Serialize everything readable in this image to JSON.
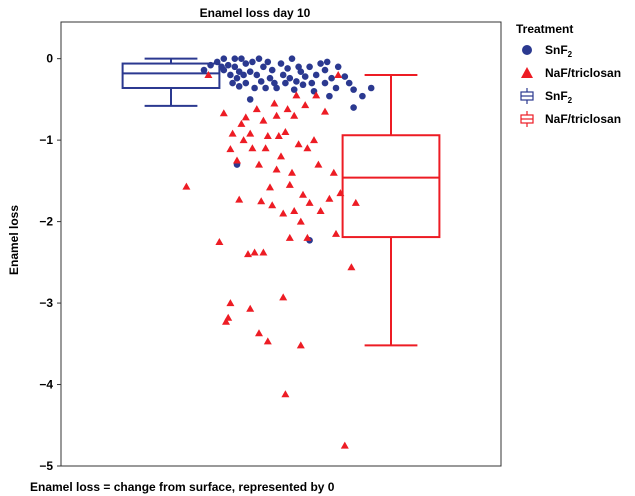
{
  "chart_data": {
    "type": "box+scatter",
    "title": "Enamel loss day 10",
    "ylabel": "Enamel loss",
    "xlabel": "",
    "caption": "Enamel loss = change from surface, represented by 0",
    "ylim": [
      -5,
      0.45
    ],
    "yticks": [
      0,
      -1,
      -2,
      -3,
      -4,
      -5
    ],
    "ytick_labels": [
      "0",
      "−1",
      "−2",
      "−3",
      "−4",
      "−5"
    ],
    "grid": false,
    "legend_position": "right",
    "legend": {
      "title": "Treatment",
      "entries": [
        {
          "label_main": "SnF",
          "label_sub": "2",
          "symbol": "circle",
          "color": "#2b3990"
        },
        {
          "label_main": "NaF/triclosan",
          "label_sub": "",
          "symbol": "triangle",
          "color": "#ed1c24"
        },
        {
          "label_main": "SnF",
          "label_sub": "2",
          "symbol": "box",
          "color": "#2b3990"
        },
        {
          "label_main": "NaF/triclosan",
          "label_sub": "",
          "symbol": "box",
          "color": "#ed1c24"
        }
      ]
    },
    "boxes": [
      {
        "name": "SnF2",
        "color": "#2b3990",
        "group_x": 0.25,
        "min": -0.58,
        "q1": -0.36,
        "median": -0.18,
        "q3": -0.06,
        "max": 0.0
      },
      {
        "name": "NaF/triclosan",
        "color": "#ed1c24",
        "group_x": 0.75,
        "min": -3.52,
        "q1": -2.19,
        "median": -1.46,
        "q3": -0.94,
        "max": -0.2
      }
    ],
    "series": [
      {
        "name": "SnF2",
        "marker": "circle",
        "color": "#2b3990",
        "points": [
          {
            "x": 0.325,
            "y": -0.14
          },
          {
            "x": 0.34,
            "y": -0.08
          },
          {
            "x": 0.355,
            "y": -0.04
          },
          {
            "x": 0.365,
            "y": -0.1
          },
          {
            "x": 0.37,
            "y": 0.0
          },
          {
            "x": 0.37,
            "y": -0.14
          },
          {
            "x": 0.38,
            "y": -0.08
          },
          {
            "x": 0.385,
            "y": -0.2
          },
          {
            "x": 0.39,
            "y": -0.3
          },
          {
            "x": 0.395,
            "y": 0.0
          },
          {
            "x": 0.395,
            "y": -0.1
          },
          {
            "x": 0.4,
            "y": -0.24
          },
          {
            "x": 0.405,
            "y": -0.16
          },
          {
            "x": 0.405,
            "y": -0.34
          },
          {
            "x": 0.41,
            "y": 0.0
          },
          {
            "x": 0.415,
            "y": -0.2
          },
          {
            "x": 0.42,
            "y": -0.3
          },
          {
            "x": 0.42,
            "y": -0.06
          },
          {
            "x": 0.43,
            "y": -0.16
          },
          {
            "x": 0.43,
            "y": -0.5
          },
          {
            "x": 0.435,
            "y": -0.04
          },
          {
            "x": 0.44,
            "y": -0.36
          },
          {
            "x": 0.445,
            "y": -0.2
          },
          {
            "x": 0.45,
            "y": 0.0
          },
          {
            "x": 0.455,
            "y": -0.28
          },
          {
            "x": 0.46,
            "y": -0.1
          },
          {
            "x": 0.465,
            "y": -0.36
          },
          {
            "x": 0.47,
            "y": -0.04
          },
          {
            "x": 0.475,
            "y": -0.24
          },
          {
            "x": 0.48,
            "y": -0.14
          },
          {
            "x": 0.485,
            "y": -0.3
          },
          {
            "x": 0.49,
            "y": -0.36
          },
          {
            "x": 0.5,
            "y": -0.06
          },
          {
            "x": 0.505,
            "y": -0.2
          },
          {
            "x": 0.51,
            "y": -0.3
          },
          {
            "x": 0.515,
            "y": -0.12
          },
          {
            "x": 0.52,
            "y": -0.24
          },
          {
            "x": 0.525,
            "y": 0.0
          },
          {
            "x": 0.53,
            "y": -0.38
          },
          {
            "x": 0.535,
            "y": -0.28
          },
          {
            "x": 0.54,
            "y": -0.1
          },
          {
            "x": 0.545,
            "y": -0.16
          },
          {
            "x": 0.55,
            "y": -0.32
          },
          {
            "x": 0.555,
            "y": -0.22
          },
          {
            "x": 0.565,
            "y": -0.1
          },
          {
            "x": 0.57,
            "y": -0.3
          },
          {
            "x": 0.575,
            "y": -0.4
          },
          {
            "x": 0.58,
            "y": -0.2
          },
          {
            "x": 0.59,
            "y": -0.06
          },
          {
            "x": 0.6,
            "y": -0.14
          },
          {
            "x": 0.6,
            "y": -0.3
          },
          {
            "x": 0.605,
            "y": -0.04
          },
          {
            "x": 0.61,
            "y": -0.46
          },
          {
            "x": 0.615,
            "y": -0.24
          },
          {
            "x": 0.625,
            "y": -0.36
          },
          {
            "x": 0.63,
            "y": -0.1
          },
          {
            "x": 0.645,
            "y": -0.22
          },
          {
            "x": 0.655,
            "y": -0.3
          },
          {
            "x": 0.665,
            "y": -0.38
          },
          {
            "x": 0.665,
            "y": -0.6
          },
          {
            "x": 0.685,
            "y": -0.46
          },
          {
            "x": 0.705,
            "y": -0.36
          },
          {
            "x": 0.4,
            "y": -1.3
          },
          {
            "x": 0.565,
            "y": -2.23
          }
        ]
      },
      {
        "name": "NaF/triclosan",
        "marker": "triangle",
        "color": "#ed1c24",
        "points": [
          {
            "x": 0.285,
            "y": -1.57
          },
          {
            "x": 0.36,
            "y": -2.25
          },
          {
            "x": 0.375,
            "y": -3.23
          },
          {
            "x": 0.38,
            "y": -3.18
          },
          {
            "x": 0.385,
            "y": -3.0
          },
          {
            "x": 0.385,
            "y": -1.11
          },
          {
            "x": 0.39,
            "y": -0.92
          },
          {
            "x": 0.37,
            "y": -0.67
          },
          {
            "x": 0.4,
            "y": -1.25
          },
          {
            "x": 0.405,
            "y": -1.73
          },
          {
            "x": 0.41,
            "y": -0.8
          },
          {
            "x": 0.415,
            "y": -1.0
          },
          {
            "x": 0.42,
            "y": -0.72
          },
          {
            "x": 0.425,
            "y": -2.4
          },
          {
            "x": 0.43,
            "y": -0.92
          },
          {
            "x": 0.43,
            "y": -3.07
          },
          {
            "x": 0.435,
            "y": -1.1
          },
          {
            "x": 0.44,
            "y": -2.38
          },
          {
            "x": 0.445,
            "y": -0.62
          },
          {
            "x": 0.45,
            "y": -1.3
          },
          {
            "x": 0.45,
            "y": -3.37
          },
          {
            "x": 0.455,
            "y": -1.75
          },
          {
            "x": 0.46,
            "y": -0.76
          },
          {
            "x": 0.46,
            "y": -2.38
          },
          {
            "x": 0.465,
            "y": -1.1
          },
          {
            "x": 0.47,
            "y": -0.95
          },
          {
            "x": 0.47,
            "y": -3.47
          },
          {
            "x": 0.475,
            "y": -1.58
          },
          {
            "x": 0.48,
            "y": -1.8
          },
          {
            "x": 0.485,
            "y": -0.55
          },
          {
            "x": 0.49,
            "y": -0.7
          },
          {
            "x": 0.49,
            "y": -1.36
          },
          {
            "x": 0.495,
            "y": -0.95
          },
          {
            "x": 0.5,
            "y": -1.2
          },
          {
            "x": 0.505,
            "y": -1.9
          },
          {
            "x": 0.505,
            "y": -2.93
          },
          {
            "x": 0.51,
            "y": -0.9
          },
          {
            "x": 0.51,
            "y": -4.12
          },
          {
            "x": 0.515,
            "y": -0.62
          },
          {
            "x": 0.52,
            "y": -1.55
          },
          {
            "x": 0.52,
            "y": -2.2
          },
          {
            "x": 0.525,
            "y": -1.4
          },
          {
            "x": 0.53,
            "y": -0.7
          },
          {
            "x": 0.53,
            "y": -1.87
          },
          {
            "x": 0.535,
            "y": -0.45
          },
          {
            "x": 0.54,
            "y": -1.05
          },
          {
            "x": 0.545,
            "y": -2.0
          },
          {
            "x": 0.545,
            "y": -3.52
          },
          {
            "x": 0.55,
            "y": -1.67
          },
          {
            "x": 0.555,
            "y": -0.57
          },
          {
            "x": 0.56,
            "y": -1.1
          },
          {
            "x": 0.56,
            "y": -2.2
          },
          {
            "x": 0.565,
            "y": -1.77
          },
          {
            "x": 0.575,
            "y": -1.0
          },
          {
            "x": 0.58,
            "y": -0.45
          },
          {
            "x": 0.585,
            "y": -1.3
          },
          {
            "x": 0.59,
            "y": -1.87
          },
          {
            "x": 0.6,
            "y": -0.65
          },
          {
            "x": 0.61,
            "y": -1.72
          },
          {
            "x": 0.62,
            "y": -1.4
          },
          {
            "x": 0.625,
            "y": -2.15
          },
          {
            "x": 0.635,
            "y": -1.65
          },
          {
            "x": 0.67,
            "y": -1.77
          },
          {
            "x": 0.66,
            "y": -2.56
          },
          {
            "x": 0.645,
            "y": -4.75
          },
          {
            "x": 0.63,
            "y": -0.2
          },
          {
            "x": 0.335,
            "y": -0.2
          }
        ]
      }
    ]
  },
  "colors": {
    "snf2": "#2b3990",
    "naf": "#ed1c24",
    "axis": "#333333"
  }
}
